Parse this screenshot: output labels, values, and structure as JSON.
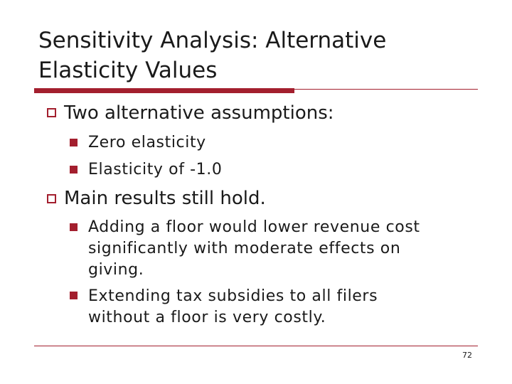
{
  "slide": {
    "title_line1": "Sensitivity Analysis: Alternative",
    "title_line2": "Elasticity Values",
    "bullets": [
      {
        "text": "Two alternative assumptions:",
        "sub": [
          "Zero elasticity",
          "Elasticity of -1.0"
        ]
      },
      {
        "text": "Main results still hold.",
        "sub": [
          {
            "lines": [
              "Adding a floor would lower revenue cost",
              "significantly with moderate effects on",
              "giving."
            ]
          },
          {
            "lines": [
              "Extending tax subsidies to all filers",
              "without a floor is very costly."
            ]
          }
        ]
      }
    ],
    "page_number": "72",
    "accent_color": "#a31f2e"
  }
}
